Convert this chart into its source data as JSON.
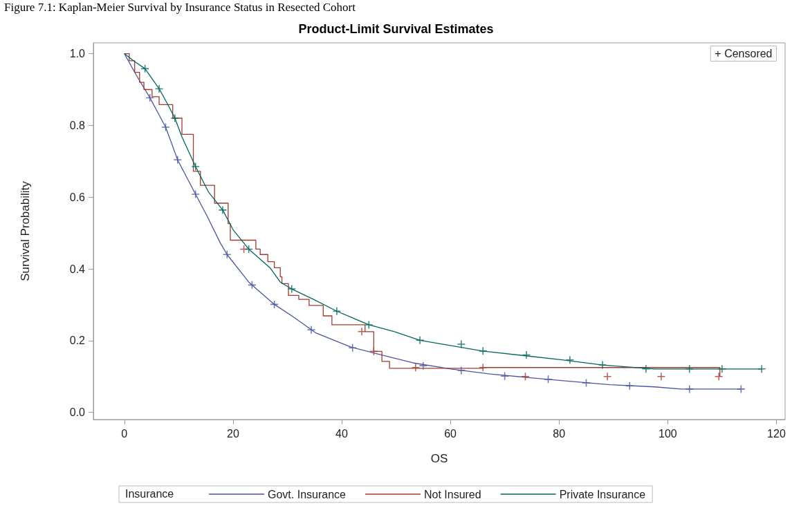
{
  "chart_data": {
    "type": "step",
    "title": "Product-Limit Survival Estimates",
    "xlabel": "OS",
    "ylabel": "Survival Probability",
    "legend_title": "Insurance",
    "legend": "bottom",
    "grid": false,
    "annotations": [
      "Figure 7.1: Kaplan-Meier Survival by Insurance Status in Resected Cohort",
      "+ Censored"
    ],
    "xlim": [
      -5.7,
      121.6
    ],
    "xticks": [
      0,
      20,
      40,
      60,
      80,
      100,
      120
    ],
    "ylim": [
      -0.02,
      1.03
    ],
    "yticks": [
      {
        "value": 0,
        "label": "0.0"
      },
      0.2,
      0.4,
      0.6,
      0.8,
      {
        "value": 1,
        "label": "1.0"
      }
    ],
    "series": [
      {
        "name": "Govt. Insurance",
        "type": "line",
        "color": "#4a55a2",
        "x": [
          0,
          2.2,
          4.7,
          7.6,
          9.8,
          13.1,
          15.3,
          17.6,
          18.9,
          22.9,
          27.6,
          31,
          35.3,
          41.7,
          47.1,
          53.1,
          60.1,
          67.3,
          80.8,
          89.4,
          97.6,
          102.4,
          113.5
        ],
        "values": [
          1,
          0.94,
          0.877,
          0.795,
          0.704,
          0.608,
          0.545,
          0.474,
          0.44,
          0.363,
          0.301,
          0.267,
          0.221,
          0.182,
          0.161,
          0.138,
          0.121,
          0.107,
          0.088,
          0.077,
          0.071,
          0.065,
          0.065
        ]
      },
      {
        "name": "Not Insured",
        "color": "#a23a2e",
        "x": [
          0,
          0.9,
          1.9,
          2.8,
          3.6,
          5.1,
          6.4,
          8.9,
          10.6,
          12.7,
          14,
          16.6,
          19.1,
          19.5,
          24.2,
          25,
          26.4,
          27.6,
          28.7,
          29,
          30.2,
          32.1,
          34,
          36.6,
          38.2,
          44.3,
          45.9,
          47.4,
          48.8,
          66,
          109.6
        ],
        "values": [
          1,
          0.98,
          0.948,
          0.92,
          0.9,
          0.88,
          0.858,
          0.82,
          0.775,
          0.672,
          0.633,
          0.583,
          0.526,
          0.48,
          0.455,
          0.44,
          0.42,
          0.403,
          0.378,
          0.359,
          0.326,
          0.315,
          0.298,
          0.269,
          0.244,
          0.225,
          0.17,
          0.142,
          0.123,
          0.125,
          0.1
        ]
      },
      {
        "name": "Private Insurance",
        "type": "line",
        "color": "#01665e",
        "x": [
          0,
          1.7,
          3.8,
          6.4,
          8,
          9.3,
          10.6,
          13.1,
          15.5,
          18.1,
          20.1,
          22.9,
          26.8,
          28.7,
          30.8,
          34.8,
          39.1,
          45,
          49.7,
          54.4,
          65.9,
          80.8,
          88,
          97.6,
          117.3
        ],
        "values": [
          1,
          0.98,
          0.958,
          0.902,
          0.858,
          0.82,
          0.768,
          0.685,
          0.614,
          0.564,
          0.507,
          0.455,
          0.403,
          0.363,
          0.344,
          0.315,
          0.282,
          0.244,
          0.225,
          0.201,
          0.171,
          0.146,
          0.132,
          0.121,
          0.121
        ]
      },
      {
        "type": "scatter",
        "marker": "cross",
        "color": "#4a55a2",
        "x": [
          4.7,
          7.6,
          9.8,
          13.1,
          18.9,
          23.5,
          27.6,
          34.4,
          42,
          55,
          62,
          70,
          78,
          85,
          93,
          104,
          113.5
        ],
        "values": [
          0.877,
          0.795,
          0.704,
          0.608,
          0.44,
          0.355,
          0.301,
          0.23,
          0.18,
          0.13,
          0.117,
          0.101,
          0.092,
          0.082,
          0.074,
          0.065,
          0.065
        ]
      },
      {
        "type": "scatter",
        "marker": "cross",
        "color": "#a23a2e",
        "x": [
          22,
          43.7,
          45.9,
          53.6,
          66,
          73.8,
          88.9,
          98.8,
          109.4
        ],
        "values": [
          0.455,
          0.225,
          0.17,
          0.125,
          0.125,
          0.1,
          0.1,
          0.1,
          0.1
        ]
      },
      {
        "type": "scatter",
        "marker": "cross",
        "color": "#01665e",
        "x": [
          3.8,
          6.4,
          9.3,
          13.1,
          18.1,
          22.9,
          30.8,
          39.1,
          45,
          54.4,
          62,
          66,
          74,
          82,
          88,
          96,
          104,
          110,
          117.3
        ],
        "values": [
          0.958,
          0.902,
          0.82,
          0.685,
          0.564,
          0.455,
          0.344,
          0.282,
          0.244,
          0.201,
          0.19,
          0.171,
          0.16,
          0.146,
          0.132,
          0.121,
          0.121,
          0.121,
          0.121
        ]
      }
    ]
  }
}
